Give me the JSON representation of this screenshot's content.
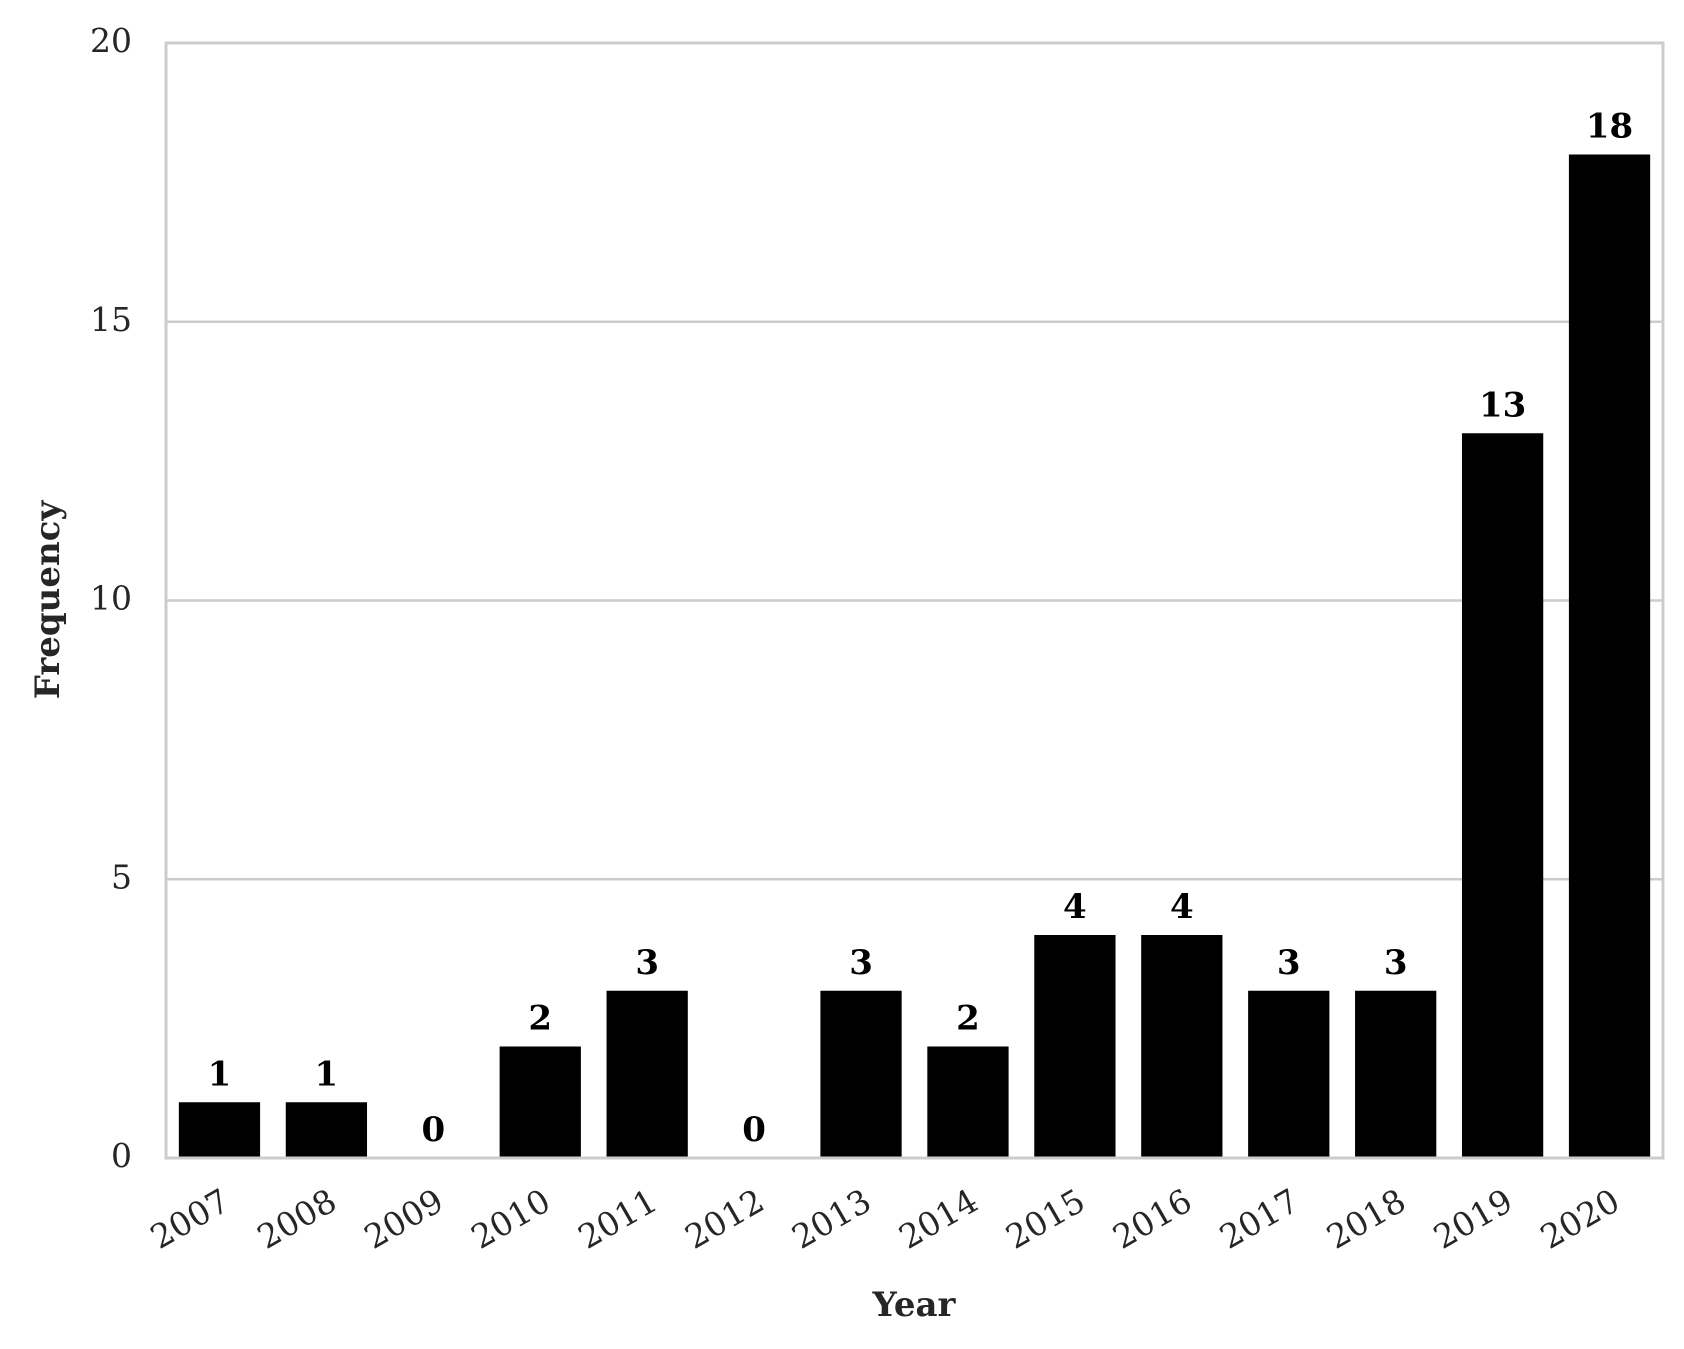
{
  "chart_data": {
    "type": "bar",
    "x_label": "Year",
    "y_label": "Frequency",
    "categories": [
      "2007",
      "2008",
      "2009",
      "2010",
      "2011",
      "2012",
      "2013",
      "2014",
      "2015",
      "2016",
      "2017",
      "2018",
      "2019",
      "2020"
    ],
    "values": [
      1,
      1,
      0,
      2,
      3,
      0,
      3,
      2,
      4,
      4,
      3,
      3,
      13,
      18
    ],
    "color": "#000000",
    "ylim": [
      0,
      20
    ],
    "yticks": [
      0,
      5,
      10,
      15,
      20
    ],
    "grid": true
  }
}
